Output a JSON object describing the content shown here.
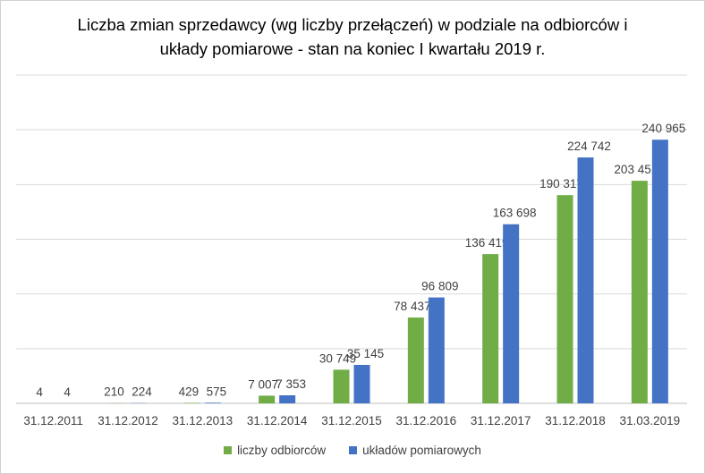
{
  "chart_data": {
    "type": "bar",
    "title_line1": "Liczba zmian sprzedawcy (wg liczby przełączeń) w podziale na odbiorców i",
    "title_line2": "układy pomiarowe - stan na koniec I kwartału 2019 r.",
    "categories": [
      "31.12.2011",
      "31.12.2012",
      "31.12.2013",
      "31.12.2014",
      "31.12.2015",
      "31.12.2016",
      "31.12.2017",
      "31.12.2018",
      "31.03.2019"
    ],
    "series": [
      {
        "name": "liczby odbiorców",
        "color": "#70ad47",
        "values": [
          4,
          210,
          429,
          7007,
          30749,
          78437,
          136419,
          190317,
          203451
        ],
        "labels": [
          "4",
          "210",
          "429",
          "7 007",
          "30 749",
          "78 437",
          "136 419",
          "190 317",
          "203 451"
        ]
      },
      {
        "name": "układów pomiarowych",
        "color": "#4472c4",
        "values": [
          4,
          224,
          575,
          7353,
          35145,
          96809,
          163698,
          224742,
          240965
        ],
        "labels": [
          "4",
          "224",
          "575",
          "7 353",
          "35 145",
          "96 809",
          "163 698",
          "224 742",
          "240 965"
        ]
      }
    ],
    "ylim": [
      0,
      300000
    ],
    "grid": true,
    "y_tick_labels_shown": false,
    "legend_position": "bottom"
  }
}
